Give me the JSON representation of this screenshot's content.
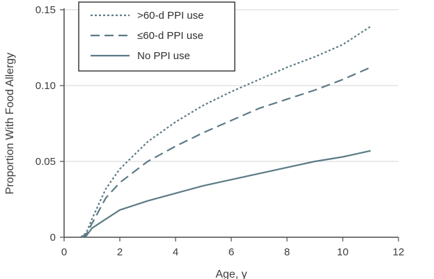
{
  "chart_data": {
    "type": "line",
    "xlabel": "Age, y",
    "ylabel": "Proportion With Food Allergy",
    "xlim": [
      0,
      12
    ],
    "ylim": [
      0,
      0.15
    ],
    "x_ticks": [
      0,
      2,
      4,
      6,
      8,
      10,
      12
    ],
    "x_tick_labels": [
      "0",
      "2",
      "4",
      "6",
      "8",
      "10",
      "12"
    ],
    "y_ticks": [
      0,
      0.05,
      0.1,
      0.15
    ],
    "y_tick_labels": [
      "0",
      "0.05",
      "0.10",
      "0.15"
    ],
    "grid": "horizontal",
    "legend_position": "top-left",
    "series": [
      {
        "name": ">60-d PPI use",
        "style": "dotted",
        "color": "#5b7a85",
        "x": [
          0.6,
          0.8,
          1.0,
          1.5,
          2.0,
          3.0,
          4.0,
          5.0,
          6.0,
          7.0,
          8.0,
          9.0,
          10.0,
          11.0
        ],
        "y": [
          0.0,
          0.003,
          0.012,
          0.032,
          0.045,
          0.063,
          0.076,
          0.087,
          0.096,
          0.104,
          0.112,
          0.119,
          0.127,
          0.139
        ]
      },
      {
        "name": "≤60-d PPI use",
        "style": "dashed",
        "color": "#5b7a85",
        "x": [
          0.6,
          0.8,
          1.0,
          1.5,
          2.0,
          3.0,
          4.0,
          5.0,
          6.0,
          7.0,
          8.0,
          9.0,
          10.0,
          11.0
        ],
        "y": [
          0.0,
          0.002,
          0.009,
          0.026,
          0.036,
          0.05,
          0.06,
          0.069,
          0.077,
          0.085,
          0.091,
          0.097,
          0.104,
          0.112
        ]
      },
      {
        "name": "No PPI use",
        "style": "solid",
        "color": "#5b7a85",
        "x": [
          0.6,
          0.8,
          1.0,
          1.5,
          2.0,
          3.0,
          4.0,
          5.0,
          6.0,
          7.0,
          8.0,
          9.0,
          10.0,
          11.0
        ],
        "y": [
          0.0,
          0.001,
          0.006,
          0.012,
          0.018,
          0.024,
          0.029,
          0.034,
          0.038,
          0.042,
          0.046,
          0.05,
          0.053,
          0.057
        ]
      }
    ]
  }
}
